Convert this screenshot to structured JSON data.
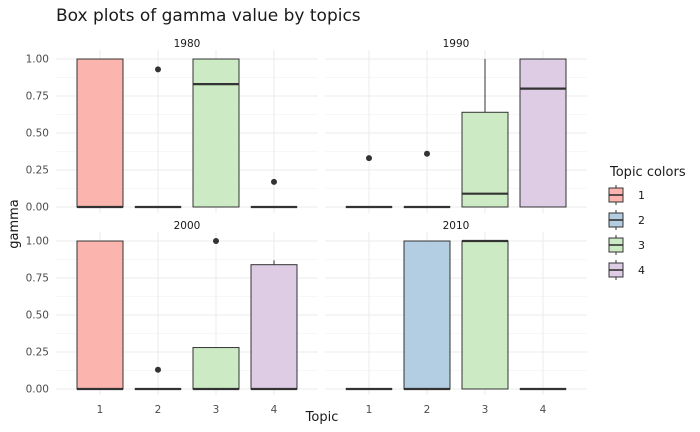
{
  "chart_data": {
    "type": "box",
    "title": "Box plots of gamma value by topics",
    "xlabel": "Topic",
    "ylabel": "gamma",
    "categories": [
      "1",
      "2",
      "3",
      "4"
    ],
    "ylim": [
      0,
      1
    ],
    "yticks": [
      "0.00",
      "0.25",
      "0.50",
      "0.75",
      "1.00"
    ],
    "grid": true,
    "legend": {
      "title": "Topic colors",
      "position": "right",
      "items": [
        {
          "label": "1",
          "color": "#FBB4AE"
        },
        {
          "label": "2",
          "color": "#B3CDE3"
        },
        {
          "label": "3",
          "color": "#CCEBC5"
        },
        {
          "label": "4",
          "color": "#DECBE4"
        }
      ]
    },
    "panels": [
      {
        "label": "1980",
        "boxes": [
          {
            "topic": "1",
            "min": 0,
            "q1": 0,
            "median": 0,
            "q3": 1.0,
            "max": 1.0,
            "outliers": []
          },
          {
            "topic": "2",
            "min": 0,
            "q1": 0,
            "median": 0,
            "q3": 0,
            "max": 0,
            "outliers": [
              0.93
            ]
          },
          {
            "topic": "3",
            "min": 0,
            "q1": 0,
            "median": 0.83,
            "q3": 1.0,
            "max": 1.0,
            "outliers": []
          },
          {
            "topic": "4",
            "min": 0,
            "q1": 0,
            "median": 0,
            "q3": 0,
            "max": 0,
            "outliers": [
              0.17
            ]
          }
        ]
      },
      {
        "label": "1990",
        "boxes": [
          {
            "topic": "1",
            "min": 0,
            "q1": 0,
            "median": 0,
            "q3": 0,
            "max": 0,
            "outliers": [
              0.33
            ]
          },
          {
            "topic": "2",
            "min": 0,
            "q1": 0,
            "median": 0,
            "q3": 0,
            "max": 0,
            "outliers": [
              0.36
            ]
          },
          {
            "topic": "3",
            "min": 0,
            "q1": 0,
            "median": 0.09,
            "q3": 0.64,
            "max": 1.0,
            "outliers": []
          },
          {
            "topic": "4",
            "min": 0,
            "q1": 0,
            "median": 0.8,
            "q3": 1.0,
            "max": 1.0,
            "outliers": []
          }
        ]
      },
      {
        "label": "2000",
        "boxes": [
          {
            "topic": "1",
            "min": 0,
            "q1": 0,
            "median": 0,
            "q3": 1.0,
            "max": 1.0,
            "outliers": []
          },
          {
            "topic": "2",
            "min": 0,
            "q1": 0,
            "median": 0,
            "q3": 0,
            "max": 0,
            "outliers": [
              0.13
            ]
          },
          {
            "topic": "3",
            "min": 0,
            "q1": 0,
            "median": 0,
            "q3": 0.28,
            "max": 0.28,
            "outliers": [
              1.0
            ]
          },
          {
            "topic": "4",
            "min": 0,
            "q1": 0,
            "median": 0,
            "q3": 0.84,
            "max": 0.87,
            "outliers": []
          }
        ]
      },
      {
        "label": "2010",
        "boxes": [
          {
            "topic": "1",
            "min": 0,
            "q1": 0,
            "median": 0,
            "q3": 0,
            "max": 0,
            "outliers": []
          },
          {
            "topic": "2",
            "min": 0,
            "q1": 0,
            "median": 0,
            "q3": 1.0,
            "max": 1.0,
            "outliers": []
          },
          {
            "topic": "3",
            "min": 0,
            "q1": 0,
            "median": 1.0,
            "q3": 1.0,
            "max": 1.0,
            "outliers": []
          },
          {
            "topic": "4",
            "min": 0,
            "q1": 0,
            "median": 0,
            "q3": 0,
            "max": 0,
            "outliers": []
          }
        ]
      }
    ]
  }
}
